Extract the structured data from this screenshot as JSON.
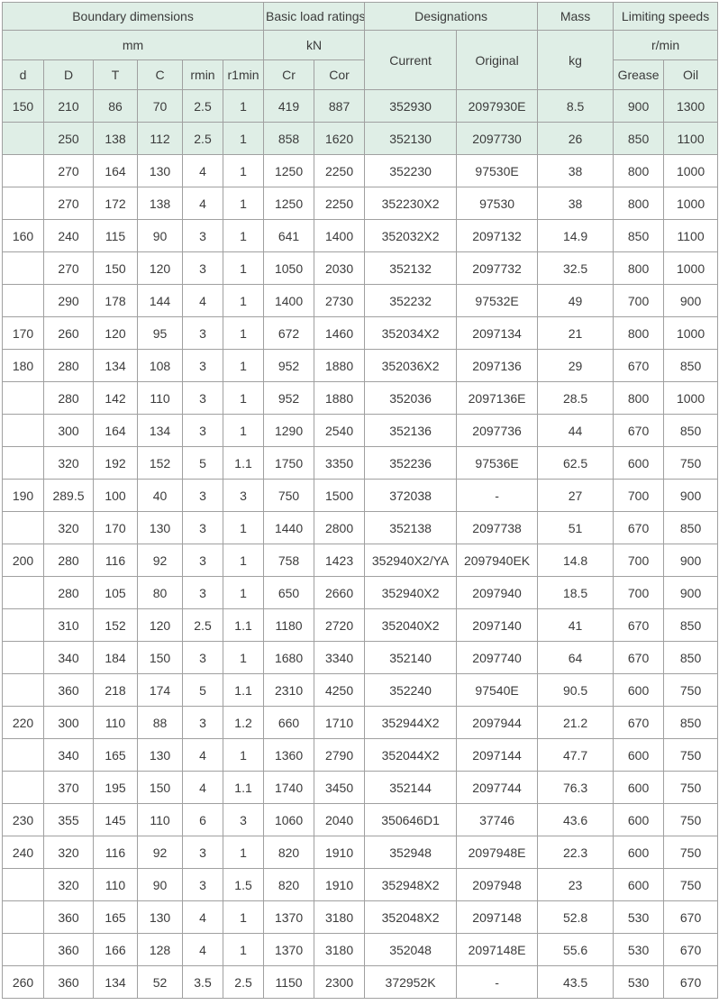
{
  "colors": {
    "header-bg": "#dfeee6",
    "highlight-bg": "#dfeee6",
    "border": "#a0a0a0",
    "text": "#3b3b3b"
  },
  "header": {
    "boundary": "Boundary dimensions",
    "mm": "mm",
    "load": "Basic load ratings",
    "kn": "kN",
    "designations": "Designations",
    "current": "Current",
    "original": "Original",
    "mass": "Mass",
    "kg": "kg",
    "limiting": "Limiting speeds",
    "rpm": "r/min",
    "grease": "Grease",
    "oil": "Oil",
    "cols": {
      "d": "d",
      "D": "D",
      "T": "T",
      "C": "C",
      "rmin": "rmin",
      "r1min": "r1min",
      "cr": "Cr",
      "cor": "Cor"
    }
  },
  "chart_data": {
    "type": "table",
    "title": "Bearing specification table",
    "column_groups": [
      {
        "label": "Boundary dimensions",
        "unit": "mm",
        "columns": [
          "d",
          "D",
          "T",
          "C",
          "rmin",
          "r1min"
        ]
      },
      {
        "label": "Basic load ratings",
        "unit": "kN",
        "columns": [
          "Cr",
          "Cor"
        ]
      },
      {
        "label": "Designations",
        "columns": [
          "Current",
          "Original"
        ]
      },
      {
        "label": "Mass",
        "unit": "kg",
        "columns": [
          "kg"
        ]
      },
      {
        "label": "Limiting speeds",
        "unit": "r/min",
        "columns": [
          "Grease",
          "Oil"
        ]
      }
    ],
    "columns": [
      "d",
      "D",
      "T",
      "C",
      "rmin",
      "r1min",
      "Cr",
      "Cor",
      "Current",
      "Original",
      "kg",
      "Grease",
      "Oil"
    ],
    "highlighted_row_indices": [
      0,
      1
    ],
    "rows": [
      [
        "150",
        "210",
        "86",
        "70",
        "2.5",
        "1",
        "419",
        "887",
        "352930",
        "2097930E",
        "8.5",
        "900",
        "1300"
      ],
      [
        "",
        "250",
        "138",
        "112",
        "2.5",
        "1",
        "858",
        "1620",
        "352130",
        "2097730",
        "26",
        "850",
        "1100"
      ],
      [
        "",
        "270",
        "164",
        "130",
        "4",
        "1",
        "1250",
        "2250",
        "352230",
        "97530E",
        "38",
        "800",
        "1000"
      ],
      [
        "",
        "270",
        "172",
        "138",
        "4",
        "1",
        "1250",
        "2250",
        "352230X2",
        "97530",
        "38",
        "800",
        "1000"
      ],
      [
        "160",
        "240",
        "115",
        "90",
        "3",
        "1",
        "641",
        "1400",
        "352032X2",
        "2097132",
        "14.9",
        "850",
        "1100"
      ],
      [
        "",
        "270",
        "150",
        "120",
        "3",
        "1",
        "1050",
        "2030",
        "352132",
        "2097732",
        "32.5",
        "800",
        "1000"
      ],
      [
        "",
        "290",
        "178",
        "144",
        "4",
        "1",
        "1400",
        "2730",
        "352232",
        "97532E",
        "49",
        "700",
        "900"
      ],
      [
        "170",
        "260",
        "120",
        "95",
        "3",
        "1",
        "672",
        "1460",
        "352034X2",
        "2097134",
        "21",
        "800",
        "1000"
      ],
      [
        "180",
        "280",
        "134",
        "108",
        "3",
        "1",
        "952",
        "1880",
        "352036X2",
        "2097136",
        "29",
        "670",
        "850"
      ],
      [
        "",
        "280",
        "142",
        "110",
        "3",
        "1",
        "952",
        "1880",
        "352036",
        "2097136E",
        "28.5",
        "800",
        "1000"
      ],
      [
        "",
        "300",
        "164",
        "134",
        "3",
        "1",
        "1290",
        "2540",
        "352136",
        "2097736",
        "44",
        "670",
        "850"
      ],
      [
        "",
        "320",
        "192",
        "152",
        "5",
        "1.1",
        "1750",
        "3350",
        "352236",
        "97536E",
        "62.5",
        "600",
        "750"
      ],
      [
        "190",
        "289.5",
        "100",
        "40",
        "3",
        "3",
        "750",
        "1500",
        "372038",
        "-",
        "27",
        "700",
        "900"
      ],
      [
        "",
        "320",
        "170",
        "130",
        "3",
        "1",
        "1440",
        "2800",
        "352138",
        "2097738",
        "51",
        "670",
        "850"
      ],
      [
        "200",
        "280",
        "116",
        "92",
        "3",
        "1",
        "758",
        "1423",
        "352940X2/YA",
        "2097940EK",
        "14.8",
        "700",
        "900"
      ],
      [
        "",
        "280",
        "105",
        "80",
        "3",
        "1",
        "650",
        "2660",
        "352940X2",
        "2097940",
        "18.5",
        "700",
        "900"
      ],
      [
        "",
        "310",
        "152",
        "120",
        "2.5",
        "1.1",
        "1180",
        "2720",
        "352040X2",
        "2097140",
        "41",
        "670",
        "850"
      ],
      [
        "",
        "340",
        "184",
        "150",
        "3",
        "1",
        "1680",
        "3340",
        "352140",
        "2097740",
        "64",
        "670",
        "850"
      ],
      [
        "",
        "360",
        "218",
        "174",
        "5",
        "1.1",
        "2310",
        "4250",
        "352240",
        "97540E",
        "90.5",
        "600",
        "750"
      ],
      [
        "220",
        "300",
        "110",
        "88",
        "3",
        "1.2",
        "660",
        "1710",
        "352944X2",
        "2097944",
        "21.2",
        "670",
        "850"
      ],
      [
        "",
        "340",
        "165",
        "130",
        "4",
        "1",
        "1360",
        "2790",
        "352044X2",
        "2097144",
        "47.7",
        "600",
        "750"
      ],
      [
        "",
        "370",
        "195",
        "150",
        "4",
        "1.1",
        "1740",
        "3450",
        "352144",
        "2097744",
        "76.3",
        "600",
        "750"
      ],
      [
        "230",
        "355",
        "145",
        "110",
        "6",
        "3",
        "1060",
        "2040",
        "350646D1",
        "37746",
        "43.6",
        "600",
        "750"
      ],
      [
        "240",
        "320",
        "116",
        "92",
        "3",
        "1",
        "820",
        "1910",
        "352948",
        "2097948E",
        "22.3",
        "600",
        "750"
      ],
      [
        "",
        "320",
        "110",
        "90",
        "3",
        "1.5",
        "820",
        "1910",
        "352948X2",
        "2097948",
        "23",
        "600",
        "750"
      ],
      [
        "",
        "360",
        "165",
        "130",
        "4",
        "1",
        "1370",
        "3180",
        "352048X2",
        "2097148",
        "52.8",
        "530",
        "670"
      ],
      [
        "",
        "360",
        "166",
        "128",
        "4",
        "1",
        "1370",
        "3180",
        "352048",
        "2097148E",
        "55.6",
        "530",
        "670"
      ],
      [
        "260",
        "360",
        "134",
        "52",
        "3.5",
        "2.5",
        "1150",
        "2300",
        "372952K",
        "-",
        "43.5",
        "530",
        "670"
      ]
    ]
  }
}
